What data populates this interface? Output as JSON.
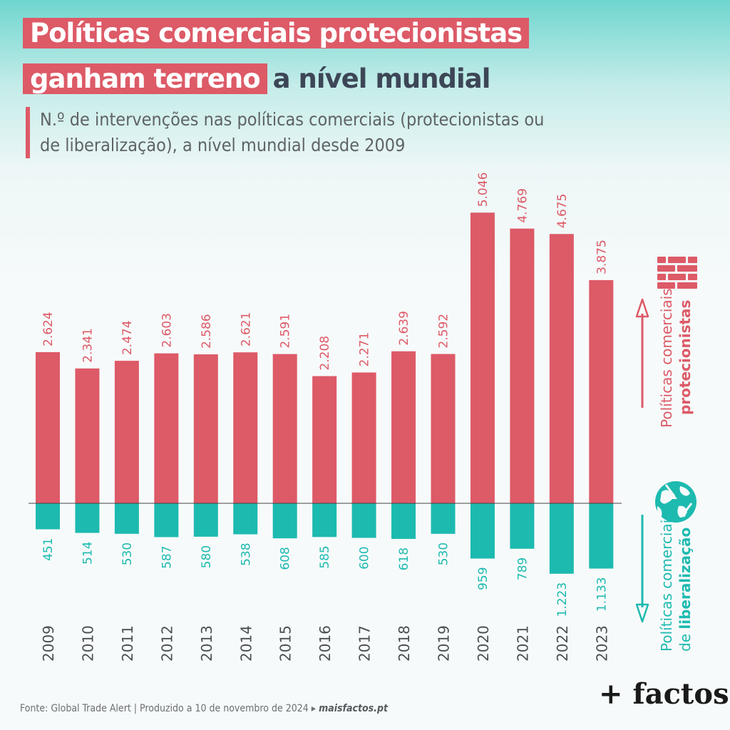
{
  "header": {
    "title_part1": "Políticas comerciais protecionistas",
    "title_part2": "ganham terreno",
    "title_part3": "a nível mundial",
    "subtitle_line1": "N.º de intervenções nas políticas comerciais (protecionistas ou",
    "subtitle_line2": "de liberalização), a nível mundial desde 2009"
  },
  "chart_data": {
    "type": "bar",
    "categories": [
      "2009",
      "2010",
      "2011",
      "2012",
      "2013",
      "2014",
      "2015",
      "2016",
      "2017",
      "2018",
      "2019",
      "2020",
      "2021",
      "2022",
      "2023"
    ],
    "series": [
      {
        "name": "Políticas comerciais protecionistas",
        "values": [
          2624,
          2341,
          2474,
          2603,
          2586,
          2621,
          2591,
          2208,
          2271,
          2639,
          2592,
          5046,
          4769,
          4675,
          3875
        ],
        "labels": [
          "2.624",
          "2.341",
          "2.474",
          "2.603",
          "2.586",
          "2.621",
          "2.591",
          "2.208",
          "2.271",
          "2.639",
          "2.592",
          "5.046",
          "4.769",
          "4.675",
          "3.875"
        ],
        "color": "#dd5a67"
      },
      {
        "name": "Políticas comerciais de liberalização",
        "values": [
          451,
          514,
          530,
          587,
          580,
          538,
          608,
          585,
          600,
          618,
          530,
          959,
          789,
          1223,
          1133
        ],
        "labels": [
          "451",
          "514",
          "530",
          "587",
          "580",
          "538",
          "608",
          "585",
          "600",
          "618",
          "530",
          "959",
          "789",
          "1.223",
          "1.133"
        ],
        "color": "#1dbab0"
      }
    ],
    "legend": {
      "protectionist_line1": "Políticas comerciais",
      "protectionist_line2": "protecionistas",
      "liberal_line1": "Políticas comerciais",
      "liberal_line2a": "de ",
      "liberal_line2b": "liberalização"
    }
  },
  "icons": {
    "protectionist": "brick-wall-icon",
    "liberal": "globe-arrows-icon"
  },
  "footer": {
    "source": "Fonte: Global Trade Alert | Produzido a 10 de novembro de 2024",
    "arrow": "▸",
    "site": "maisfactos.pt",
    "logo": "+ factos"
  }
}
